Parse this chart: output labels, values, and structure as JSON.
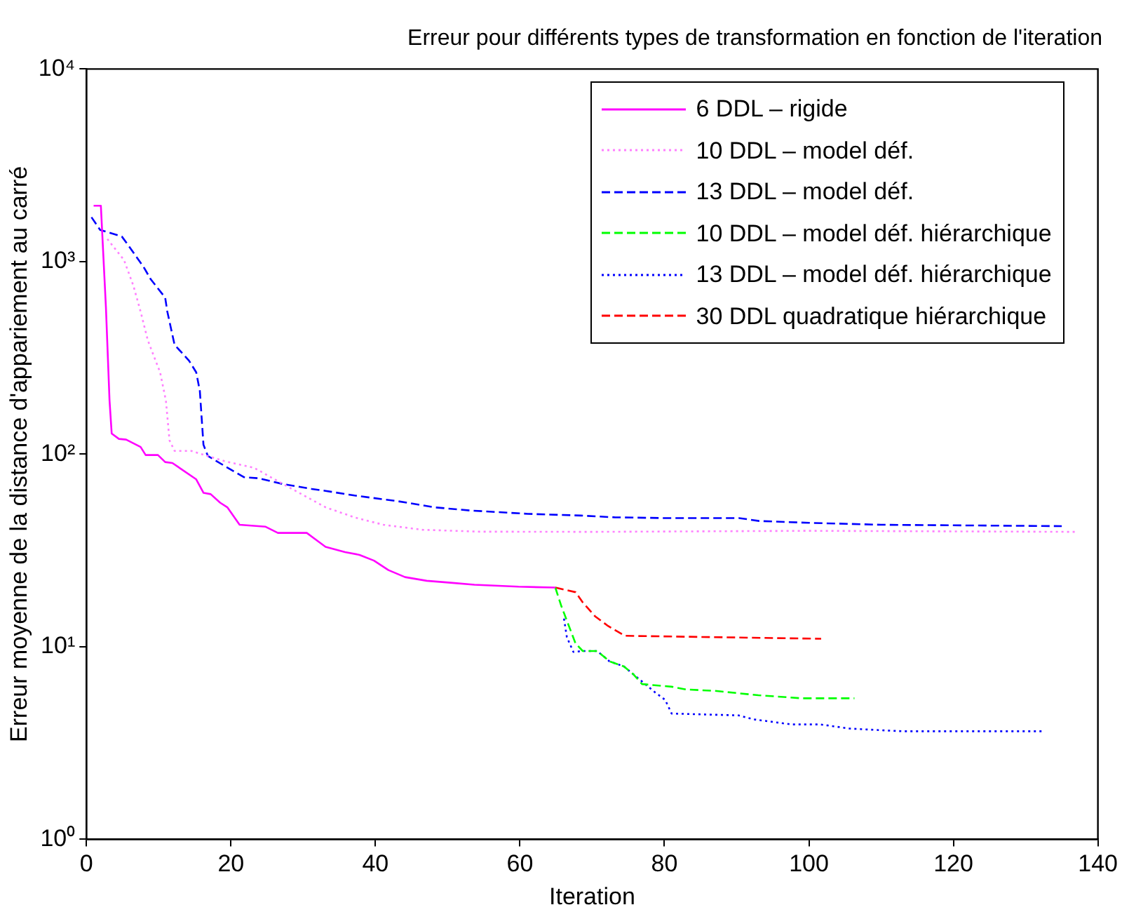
{
  "chart_data": {
    "type": "line",
    "title": "Erreur pour différents types de transformation en fonction de l'iteration",
    "xlabel": "Iteration",
    "ylabel": "Erreur moyenne de la distance d'appariement au carré",
    "log": "y",
    "xlim": [
      0,
      140
    ],
    "xticks": [
      0,
      20,
      40,
      60,
      80,
      100,
      120,
      140
    ],
    "ylim": [
      1,
      10000
    ],
    "yticks": [
      {
        "value": 1,
        "label": "10⁰"
      },
      {
        "value": 10,
        "label": "10¹"
      },
      {
        "value": 100,
        "label": "10²"
      },
      {
        "value": 1000,
        "label": "10³"
      },
      {
        "value": 10000,
        "label": "10⁴"
      }
    ],
    "grid": false,
    "legend": "top right",
    "marker": "none",
    "series": [
      {
        "name": "6 DDL – rigide",
        "color": "#ff00ff",
        "line_style": "solid",
        "x": [
          1,
          2,
          2.7,
          3.2,
          3.5,
          4.5,
          5.5,
          7.5,
          8.2,
          9.9,
          10.9,
          11.9,
          15.2,
          16.2,
          17.2,
          18.5,
          19.5,
          21.2,
          24.8,
          26.5,
          30.5,
          33.1,
          35.8,
          37.8,
          39.8,
          41.8,
          44.1,
          47.1,
          50.4,
          53.7,
          59.8,
          64.9
        ],
        "values": [
          1950,
          1950,
          580,
          190,
          128,
          120,
          119,
          109,
          99,
          99,
          91,
          90,
          74,
          63,
          62,
          56,
          53,
          43,
          42,
          39,
          39,
          33,
          31,
          30,
          28,
          25,
          23,
          22,
          21.5,
          21,
          20.5,
          20.3
        ]
      },
      {
        "name": "10 DDL – model déf.",
        "color": "#ff80ff",
        "line_style": "dotted",
        "x": [
          2.9,
          5.2,
          6.5,
          7.5,
          8.5,
          10.2,
          11,
          11.5,
          12.2,
          14.5,
          19.1,
          23.2,
          27.2,
          33.1,
          37.1,
          41.1,
          46.5,
          54.4,
          70,
          100,
          137
        ],
        "values": [
          1310,
          1020,
          750,
          550,
          390,
          266,
          190,
          118,
          104,
          104,
          92,
          85,
          70,
          53,
          47,
          43,
          40.5,
          39.6,
          39.5,
          40,
          39.5
        ]
      },
      {
        "name": "13 DDL – model déf.",
        "color": "#0000ff",
        "line_style": "dashed",
        "x": [
          0.7,
          1.9,
          4.9,
          5.9,
          7.9,
          8.9,
          10.9,
          11.2,
          12.2,
          14.2,
          15.2,
          15.7,
          16.2,
          16.8,
          19.1,
          21.8,
          23.8,
          27.2,
          31.2,
          33.1,
          37.1,
          43.1,
          48.1,
          53.1,
          61.1,
          68.4,
          73.1,
          79.7,
          90.3,
          93.1,
          100,
          110,
          135
        ],
        "values": [
          1700,
          1460,
          1350,
          1200,
          940,
          810,
          650,
          550,
          370,
          306,
          266,
          213,
          112,
          98,
          87,
          76,
          75,
          70,
          66,
          64.5,
          61,
          57,
          53,
          51,
          49,
          48,
          47,
          46.6,
          46.6,
          45,
          44,
          43,
          42.3
        ]
      },
      {
        "name": "10 DDL – model déf. hiérarchique",
        "color": "#00ff00",
        "line_style": "dashed",
        "x": [
          64.9,
          65.7,
          67.7,
          68.7,
          70.7,
          72.4,
          74.4,
          75.7,
          76.9,
          81,
          83,
          87,
          93,
          99,
          106.3
        ],
        "values": [
          20.3,
          16.4,
          10.4,
          9.5,
          9.5,
          8.4,
          7.9,
          7.2,
          6.4,
          6.2,
          6,
          5.9,
          5.6,
          5.4,
          5.4
        ]
      },
      {
        "name": "13 DDL – model déf. hiérarchique",
        "color": "#0000ff",
        "line_style": "dotted",
        "x": [
          66.1,
          66.5,
          67.4,
          68.7,
          70.7,
          72.4,
          74.4,
          78.7,
          80.1,
          81,
          90.3,
          92.3,
          97.6,
          101.6,
          105.6,
          112.9,
          132.2
        ],
        "values": [
          14,
          11.2,
          9.4,
          9.5,
          9.5,
          8.4,
          7.9,
          5.8,
          5.3,
          4.5,
          4.4,
          4.2,
          3.95,
          3.95,
          3.76,
          3.64,
          3.64
        ]
      },
      {
        "name": "30 DDL quadratique hiérarchique",
        "color": "#ff0000",
        "line_style": "dashed",
        "x": [
          64.9,
          67.7,
          68.7,
          70.4,
          72.1,
          74.5,
          101.7
        ],
        "values": [
          20.3,
          19.2,
          17,
          14.4,
          12.9,
          11.4,
          11
        ]
      }
    ]
  }
}
